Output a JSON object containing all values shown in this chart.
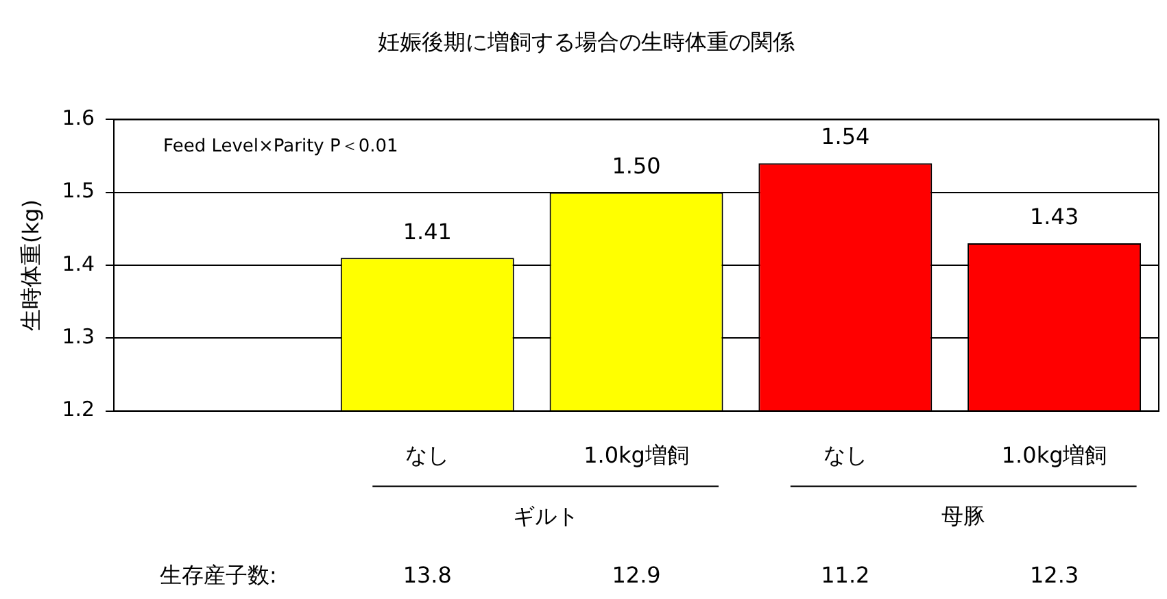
{
  "chart_data": {
    "type": "bar",
    "title": "妊娠後期に増飼する場合の生時体重の関係",
    "ylabel": "生時体重(kg)",
    "categories": [
      null,
      "なし",
      "1.0kg増飼",
      "なし",
      "1.0kg増飼"
    ],
    "values": [
      null,
      1.41,
      1.5,
      1.54,
      1.43
    ],
    "value_labels": [
      null,
      "1.41",
      "1.50",
      "1.54",
      "1.43"
    ],
    "colors": [
      "#ffff00",
      "#ffff00",
      "#ffff00",
      "#ff0000",
      "#ff0000"
    ],
    "ylim": [
      1.2,
      1.6
    ],
    "yticks": [
      1.2,
      1.3,
      1.4,
      1.5,
      1.6
    ],
    "grid": "y",
    "legend": false,
    "annotations": [
      "Feed Level×Parity P＜0.01",
      "ギルト",
      "母豚",
      "生存産子数:",
      "13.8",
      "12.9",
      "11.2",
      "12.3"
    ]
  }
}
